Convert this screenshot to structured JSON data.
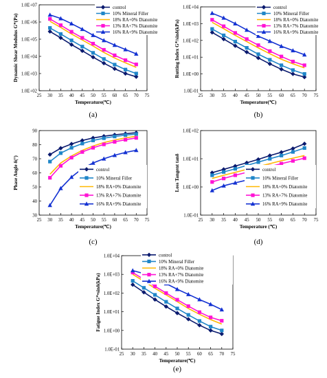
{
  "series_styles": [
    {
      "color": "#0a1a6e",
      "marker": "diamond"
    },
    {
      "color": "#1f86c8",
      "marker": "square"
    },
    {
      "color": "#ffb800",
      "marker": "none"
    },
    {
      "color": "#ff14d4",
      "marker": "square"
    },
    {
      "color": "#1432d2",
      "marker": "triangle"
    }
  ],
  "chart_data": [
    {
      "panel_label": "(a)",
      "type": "line",
      "ylabel": "Dynamic Shear Modulus G*(Pa)",
      "xlabel": "Temperature(℃)",
      "log_y": true,
      "xlim": [
        25,
        75
      ],
      "x_ticks": [
        25,
        30,
        35,
        40,
        45,
        50,
        55,
        60,
        65,
        70,
        75
      ],
      "ylim": [
        100,
        10000000
      ],
      "y_ticks": [
        "1.0E+02",
        "1.0E+03",
        "1.0E+04",
        "1.0E+05",
        "1.0E+06",
        "1.0E+07"
      ],
      "legend_position": "top-right",
      "x": [
        30,
        35,
        40,
        45,
        50,
        55,
        60,
        65,
        70
      ],
      "series": [
        {
          "name": "control",
          "values": [
            280000,
            120000,
            48000,
            21000,
            9000,
            4000,
            1900,
            1000,
            650
          ]
        },
        {
          "name": "10% Mineral Filler",
          "values": [
            450000,
            200000,
            85000,
            37000,
            16000,
            7000,
            3300,
            1700,
            1000
          ]
        },
        {
          "name": "18% RA+0% Diatomite",
          "values": [
            1100000,
            480000,
            200000,
            90000,
            40000,
            17000,
            8000,
            4200,
            2300
          ]
        },
        {
          "name": "13% RA+7% Diatomite",
          "values": [
            1500000,
            650000,
            270000,
            120000,
            55000,
            24000,
            11500,
            6000,
            3400
          ]
        },
        {
          "name": "16% RA+9% Diatomite",
          "values": [
            2600000,
            1600000,
            800000,
            380000,
            170000,
            85000,
            45000,
            25000,
            14000
          ]
        }
      ]
    },
    {
      "panel_label": "(b)",
      "type": "line",
      "ylabel": "Rutting Index G*/sinδ(kPa)",
      "xlabel": "Temperature(℃)",
      "log_y": true,
      "xlim": [
        25,
        75
      ],
      "x_ticks": [
        25,
        30,
        35,
        40,
        45,
        50,
        55,
        60,
        65,
        70,
        75
      ],
      "ylim": [
        0.1,
        10000
      ],
      "y_ticks": [
        "1.0E-01",
        "1.0E+00",
        "1.0E+01",
        "1.0E+02",
        "1.0E+03",
        "1.0E+04"
      ],
      "legend_position": "top-right",
      "x": [
        30,
        35,
        40,
        45,
        50,
        55,
        60,
        65,
        70
      ],
      "series": [
        {
          "name": "control",
          "values": [
            300,
            120,
            48,
            20,
            9,
            4,
            1.9,
            1.0,
            0.65
          ]
        },
        {
          "name": "10% Mineral Filler",
          "values": [
            480,
            200,
            85,
            36,
            15,
            7,
            3.3,
            1.7,
            1.0
          ]
        },
        {
          "name": "18% RA+0% Diatomite",
          "values": [
            1200,
            500,
            200,
            85,
            36,
            16,
            7.5,
            4,
            2.3
          ]
        },
        {
          "name": "13% RA+7% Diatomite",
          "values": [
            1700,
            700,
            280,
            120,
            52,
            23,
            11,
            5.5,
            3.3
          ]
        },
        {
          "name": "16% RA+9% Diatomite",
          "values": [
            4200,
            2200,
            1000,
            420,
            180,
            90,
            45,
            25,
            14
          ]
        }
      ]
    },
    {
      "panel_label": "(c)",
      "type": "line",
      "ylabel": "Phase Angle δ(°)",
      "xlabel": "Temperature(℃)",
      "log_y": false,
      "xlim": [
        25,
        75
      ],
      "x_ticks": [
        25,
        30,
        35,
        40,
        45,
        50,
        55,
        60,
        65,
        70,
        75
      ],
      "ylim": [
        30,
        90
      ],
      "y_ticks": [
        "30",
        "40",
        "50",
        "60",
        "70",
        "80",
        "90"
      ],
      "legend_position": "bottom-right",
      "x": [
        30,
        35,
        40,
        45,
        50,
        55,
        60,
        65,
        70
      ],
      "series": [
        {
          "name": "control",
          "values": [
            73,
            77.5,
            80.5,
            83,
            84.8,
            86,
            87,
            87.8,
            88.5
          ]
        },
        {
          "name": "10% Mineral Filler",
          "values": [
            68,
            74,
            77.8,
            80.8,
            83,
            84.6,
            85.8,
            86.8,
            87.5
          ]
        },
        {
          "name": "18% RA+0% Diatomite",
          "values": [
            59,
            67,
            72,
            76,
            79,
            81.5,
            83.3,
            84.8,
            86
          ]
        },
        {
          "name": "13% RA+7% Diatomite",
          "values": [
            56.5,
            65,
            70.8,
            74.8,
            77.8,
            80.2,
            82,
            83.5,
            84.8
          ]
        },
        {
          "name": "16% RA+9% Diatomite",
          "values": [
            37,
            49,
            57,
            63,
            67,
            70,
            72.5,
            74.5,
            76
          ]
        }
      ]
    },
    {
      "panel_label": "(d)",
      "type": "line",
      "ylabel": "Loss Tangent tanδ",
      "xlabel": "Temperature (℃)",
      "log_y": true,
      "xlim": [
        25,
        75
      ],
      "x_ticks": [
        25,
        30,
        35,
        40,
        45,
        50,
        55,
        60,
        65,
        70,
        75
      ],
      "ylim": [
        0.1,
        100
      ],
      "y_ticks": [
        "1.0E-01",
        "1.0E+00",
        "1.0E+01",
        "1.0E+02"
      ],
      "legend_position": "bottom-right",
      "x": [
        30,
        35,
        40,
        45,
        50,
        55,
        60,
        65,
        70
      ],
      "series": [
        {
          "name": "control",
          "values": [
            3.2,
            4.2,
            5.5,
            7.2,
            9.5,
            13,
            17,
            23,
            34
          ]
        },
        {
          "name": "10% Mineral Filler",
          "values": [
            2.6,
            3.4,
            4.4,
            5.8,
            7.6,
            10,
            13,
            17.5,
            24
          ]
        },
        {
          "name": "18% RA+0% Diatomite",
          "values": [
            2.0,
            2.6,
            3.3,
            4.2,
            5.3,
            6.7,
            8.5,
            10.5,
            13
          ]
        },
        {
          "name": "13% RA+7% Diatomite",
          "values": [
            1.5,
            2.0,
            2.6,
            3.3,
            4.2,
            5.3,
            6.7,
            8.4,
            10.5
          ]
        },
        {
          "name": "16% RA+9% Diatomite",
          "values": [
            0.75,
            1.1,
            1.4,
            1.75,
            2.1,
            2.5,
            3.0,
            3.5,
            4.0
          ]
        }
      ]
    },
    {
      "panel_label": "(e)",
      "type": "line",
      "ylabel": "Fatigue Index G*•sinδ(kPa)",
      "xlabel": "Temperature(℃)",
      "log_y": true,
      "xlim": [
        25,
        75
      ],
      "x_ticks": [
        25,
        30,
        35,
        40,
        45,
        50,
        55,
        60,
        65,
        70,
        75
      ],
      "ylim": [
        0.1,
        10000
      ],
      "y_ticks": [
        "1.0E-01",
        "1.0E+00",
        "1.0E+01",
        "1.0E+02",
        "1.0E+03",
        "1.0E+04"
      ],
      "legend_position": "top-right",
      "x": [
        30,
        35,
        40,
        45,
        50,
        55,
        60,
        65,
        70
      ],
      "series": [
        {
          "name": "control",
          "values": [
            280,
            110,
            45,
            19,
            8.5,
            4,
            1.9,
            1.0,
            0.65
          ]
        },
        {
          "name": "10% Mineral Filler",
          "values": [
            450,
            190,
            80,
            34,
            15,
            6.8,
            3.2,
            1.6,
            1.0
          ]
        },
        {
          "name": "18% RA+0% Diatomite",
          "values": [
            1000,
            430,
            180,
            80,
            35,
            15,
            7.3,
            3.8,
            2.2
          ]
        },
        {
          "name": "13% RA+7% Diatomite",
          "values": [
            1250,
            540,
            230,
            100,
            44,
            20,
            9.5,
            5,
            3.3
          ]
        },
        {
          "name": "16% RA+9% Diatomite",
          "values": [
            1600,
            1100,
            620,
            320,
            160,
            85,
            45,
            25,
            13
          ]
        }
      ]
    }
  ]
}
